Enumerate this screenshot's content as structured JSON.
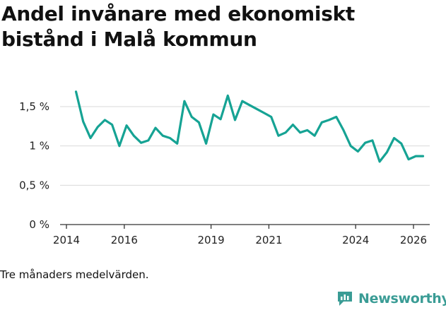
{
  "title": "Andel invånare med ekonomiskt bistånd i Malå kommun",
  "note": "Tre månaders medelvärden.",
  "brand": {
    "name": "Newsworthy",
    "icon": "newsworthy-logo-icon",
    "color": "#3a9c95"
  },
  "colors": {
    "line": "#16a394",
    "grid": "#d9d9d9",
    "axis": "#333333",
    "text": "#222222"
  },
  "chart_data": {
    "type": "line",
    "title": "Andel invånare med ekonomiskt bistånd i Malå kommun",
    "xlabel": "",
    "ylabel": "",
    "ylim": [
      0,
      1.5
    ],
    "xlim": [
      2014,
      2026.5
    ],
    "grid": true,
    "y_ticks": [
      {
        "value": 0,
        "label": "0 %"
      },
      {
        "value": 0.5,
        "label": "0,5 %"
      },
      {
        "value": 1,
        "label": "1 %"
      },
      {
        "value": 1.5,
        "label": "1,5 %"
      }
    ],
    "x_ticks": [
      {
        "value": 2014,
        "label": "2014"
      },
      {
        "value": 2016,
        "label": "2016"
      },
      {
        "value": 2019,
        "label": "2019"
      },
      {
        "value": 2021,
        "label": "2021"
      },
      {
        "value": 2024,
        "label": "2024"
      },
      {
        "value": 2026,
        "label": "2026"
      }
    ],
    "series": [
      {
        "name": "Andel invånare med ekonomiskt bistånd",
        "points": [
          [
            2014.33,
            1.69
          ],
          [
            2014.58,
            1.31
          ],
          [
            2014.83,
            1.1
          ],
          [
            2015.08,
            1.24
          ],
          [
            2015.33,
            1.33
          ],
          [
            2015.58,
            1.27
          ],
          [
            2015.83,
            1.0
          ],
          [
            2016.08,
            1.26
          ],
          [
            2016.33,
            1.13
          ],
          [
            2016.58,
            1.04
          ],
          [
            2016.83,
            1.07
          ],
          [
            2017.08,
            1.23
          ],
          [
            2017.33,
            1.13
          ],
          [
            2017.58,
            1.1
          ],
          [
            2017.83,
            1.03
          ],
          [
            2018.08,
            1.57
          ],
          [
            2018.33,
            1.37
          ],
          [
            2018.58,
            1.3
          ],
          [
            2018.83,
            1.03
          ],
          [
            2019.08,
            1.4
          ],
          [
            2019.33,
            1.34
          ],
          [
            2019.58,
            1.64
          ],
          [
            2019.83,
            1.33
          ],
          [
            2020.08,
            1.57
          ],
          [
            2020.33,
            1.52
          ],
          [
            2020.58,
            1.47
          ],
          [
            2020.83,
            1.42
          ],
          [
            2021.08,
            1.37
          ],
          [
            2021.33,
            1.13
          ],
          [
            2021.58,
            1.17
          ],
          [
            2021.83,
            1.27
          ],
          [
            2022.08,
            1.17
          ],
          [
            2022.33,
            1.2
          ],
          [
            2022.58,
            1.13
          ],
          [
            2022.83,
            1.3
          ],
          [
            2023.08,
            1.33
          ],
          [
            2023.33,
            1.37
          ],
          [
            2023.58,
            1.2
          ],
          [
            2023.83,
            1.0
          ],
          [
            2024.08,
            0.93
          ],
          [
            2024.33,
            1.04
          ],
          [
            2024.58,
            1.07
          ],
          [
            2024.83,
            0.8
          ],
          [
            2025.08,
            0.92
          ],
          [
            2025.33,
            1.1
          ],
          [
            2025.58,
            1.03
          ],
          [
            2025.83,
            0.83
          ],
          [
            2026.08,
            0.87
          ],
          [
            2026.33,
            0.87
          ]
        ]
      }
    ]
  }
}
